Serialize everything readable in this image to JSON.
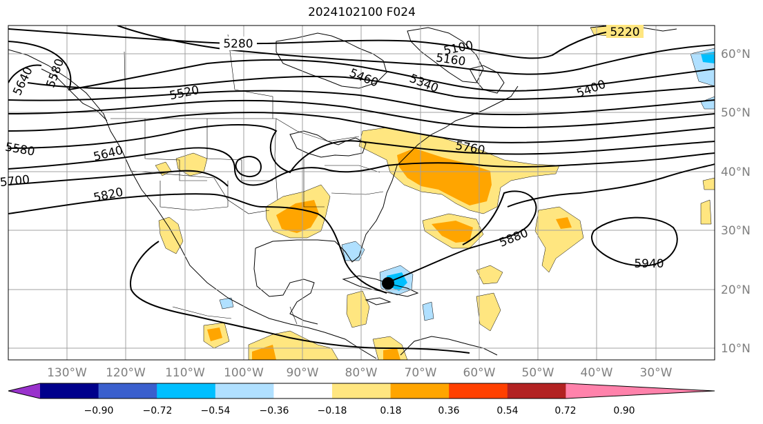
{
  "title": "2024102100 F024",
  "map": {
    "lon_labels": [
      "130°W",
      "120°W",
      "110°W",
      "100°W",
      "90°W",
      "80°W",
      "70°W",
      "60°W",
      "50°W",
      "40°W",
      "30°W"
    ],
    "lat_labels": [
      "60°N",
      "50°N",
      "40°N",
      "30°N",
      "20°N",
      "10°N"
    ],
    "contour_labels": [
      "5280",
      "5220",
      "5100",
      "5160",
      "5460",
      "5340",
      "5400",
      "5520",
      "5640",
      "5760",
      "5820",
      "5880",
      "5940",
      "5640",
      "5580",
      "5580",
      "5700"
    ],
    "marker": "storm-center-dot"
  },
  "colorbar": {
    "ticks": [
      "−0.90",
      "−0.72",
      "−0.54",
      "−0.36",
      "−0.18",
      "0.18",
      "0.36",
      "0.54",
      "0.72",
      "0.90"
    ],
    "colors": [
      "#9932cc",
      "#00008b",
      "#3a5fcd",
      "#00bfff",
      "#b0e0ff",
      "#ffffff",
      "#ffe680",
      "#ffa500",
      "#ff4000",
      "#b22222",
      "#ff82ab"
    ]
  }
}
